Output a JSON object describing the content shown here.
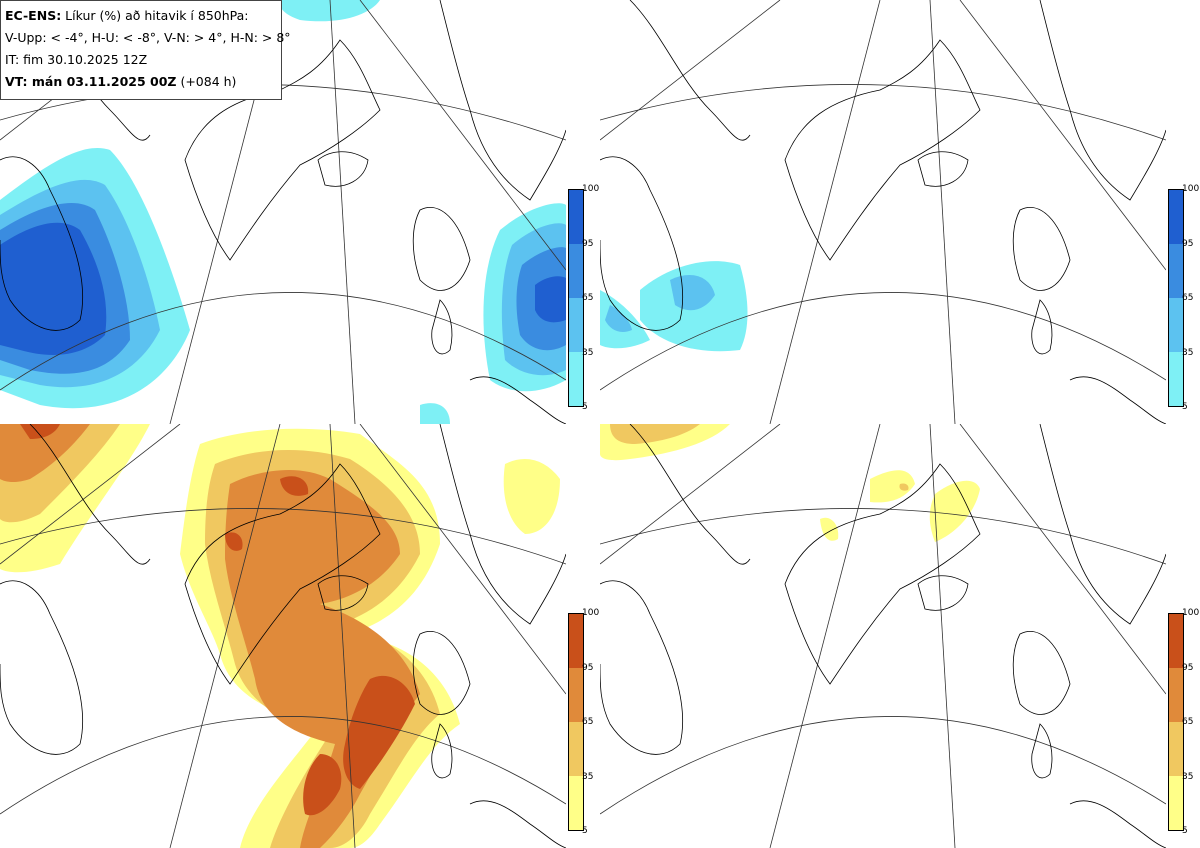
{
  "title_box": {
    "line1_bold": "EC-ENS:",
    "line1_rest": " Líkur (%) að hitavik í 850hPa:",
    "line2": "V-Upp: < -4°, H-U: < -8°, V-N: > 4°, H-N: > 8°",
    "line3": "IT: fim 30.10.2025 12Z",
    "line4_bold": "VT: mán 03.11.2025 00Z",
    "line4_rest": " (+084 h)"
  },
  "panels": [
    {
      "id": "V-Upp",
      "threshold": "< -4°",
      "palette": "blue"
    },
    {
      "id": "H-U",
      "threshold": "< -8°",
      "palette": "blue"
    },
    {
      "id": "V-N",
      "threshold": "> 4°",
      "palette": "orange"
    },
    {
      "id": "H-N",
      "threshold": "> 8°",
      "palette": "orange"
    }
  ],
  "colorbar_ticks": [
    "100",
    "95",
    "65",
    "35",
    "5"
  ],
  "colors": {
    "blue": [
      "#1f5fd0",
      "#3a8ce0",
      "#5cc2f0",
      "#7ef0f5"
    ],
    "orange": [
      "#c9501a",
      "#e08a3a",
      "#f0c860",
      "#ffff88"
    ],
    "land_line": "#000000",
    "grid_line": "#333333"
  }
}
